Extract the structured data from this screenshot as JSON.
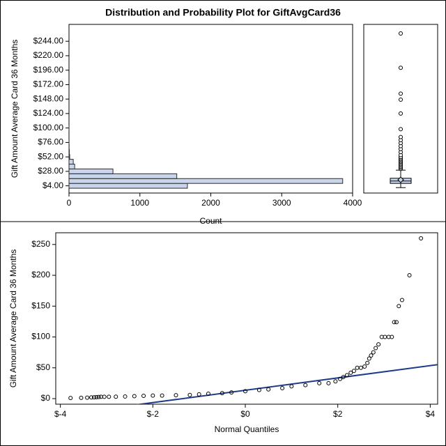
{
  "title": "Distribution and Probability Plot for GiftAvgCard36",
  "chart_data": [
    {
      "type": "histogram",
      "orientation": "horizontal",
      "y_label": "Gift Amount Average Card 36 Months",
      "x_label": "Count",
      "bins": [
        0,
        8,
        16,
        24,
        32,
        40,
        48,
        56,
        64,
        72,
        80,
        88,
        96,
        104
      ],
      "counts": [
        1670,
        3860,
        1520,
        620,
        80,
        60,
        10,
        5,
        2,
        1,
        0,
        0,
        1
      ],
      "color": "#c9d5ea",
      "edge_color": "#2b2b2b",
      "ylim": [
        -8,
        272
      ],
      "yticks": [
        {
          "value": 4,
          "label": "$4.00"
        },
        {
          "value": 28,
          "label": "$28.00"
        },
        {
          "value": 52,
          "label": "$52.00"
        },
        {
          "value": 76,
          "label": "$76.00"
        },
        {
          "value": 100,
          "label": "$100.00"
        },
        {
          "value": 124,
          "label": "$124.00"
        },
        {
          "value": 148,
          "label": "$148.00"
        },
        {
          "value": 172,
          "label": "$172.00"
        },
        {
          "value": 196,
          "label": "$196.00"
        },
        {
          "value": 220,
          "label": "$220.00"
        },
        {
          "value": 244,
          "label": "$244.00"
        }
      ],
      "xlim": [
        0,
        4000
      ],
      "xticks": [
        0,
        1000,
        2000,
        3000,
        4000
      ]
    },
    {
      "type": "box",
      "ylim": [
        -8,
        272
      ],
      "color": "#c9d5ea",
      "whisker_low": 1,
      "q1": 8,
      "median": 12,
      "q3": 16.5,
      "whisker_high": 30,
      "mean": 14,
      "outliers": [
        32,
        34,
        36,
        38,
        40,
        42,
        44,
        46,
        48,
        50,
        52,
        55,
        60,
        65,
        70,
        75,
        80,
        85,
        98,
        124,
        147,
        157,
        200,
        257
      ]
    },
    {
      "type": "scatter",
      "y_label": "Gift Amount Average Card 36 Months",
      "x_label": "Normal Quantiles",
      "x": [
        -3.78,
        -3.55,
        -3.42,
        -3.33,
        -3.27,
        -3.22,
        -3.17,
        -3.12,
        -3.05,
        -2.95,
        -2.8,
        -2.6,
        -2.4,
        -2.2,
        -2.0,
        -1.8,
        -1.5,
        -1.2,
        -1.0,
        -0.8,
        -0.5,
        -0.3,
        0.0,
        0.3,
        0.5,
        0.8,
        1.0,
        1.3,
        1.6,
        1.8,
        1.95,
        2.05,
        2.12,
        2.2,
        2.28,
        2.35,
        2.42,
        2.5,
        2.58,
        2.64,
        2.68,
        2.72,
        2.77,
        2.82,
        2.88,
        2.95,
        3.02,
        3.1,
        3.17,
        3.22,
        3.27,
        3.32,
        3.39,
        3.55,
        3.8
      ],
      "y": [
        1,
        1.3,
        1.6,
        2,
        2.2,
        2.5,
        2.7,
        3,
        3,
        3,
        3.2,
        3.5,
        4,
        4.5,
        5,
        5,
        5.5,
        6,
        7,
        8,
        9,
        10,
        12,
        14,
        15,
        17,
        20,
        22,
        25,
        25,
        28,
        32,
        35,
        38,
        42,
        45,
        50,
        50,
        52,
        58,
        65,
        70,
        75,
        82,
        88,
        100,
        100,
        100,
        100,
        124,
        124,
        150,
        160,
        200,
        260
      ],
      "color": "#000000",
      "reference_line": {
        "intercept": 13.6,
        "slope": 10,
        "color": "#1f3c88"
      },
      "xlim": [
        -4.1,
        4.16
      ],
      "xticks": [
        {
          "value": -4,
          "label": "$-4"
        },
        {
          "value": -2,
          "label": "$-2"
        },
        {
          "value": 0,
          "label": "$0"
        },
        {
          "value": 2,
          "label": "$2"
        },
        {
          "value": 4,
          "label": "$4"
        }
      ],
      "ylim": [
        -9,
        269
      ],
      "yticks": [
        {
          "value": 0,
          "label": "$0"
        },
        {
          "value": 50,
          "label": "$50"
        },
        {
          "value": 100,
          "label": "$100"
        },
        {
          "value": 150,
          "label": "$150"
        },
        {
          "value": 200,
          "label": "$200"
        },
        {
          "value": 250,
          "label": "$250"
        }
      ]
    }
  ]
}
